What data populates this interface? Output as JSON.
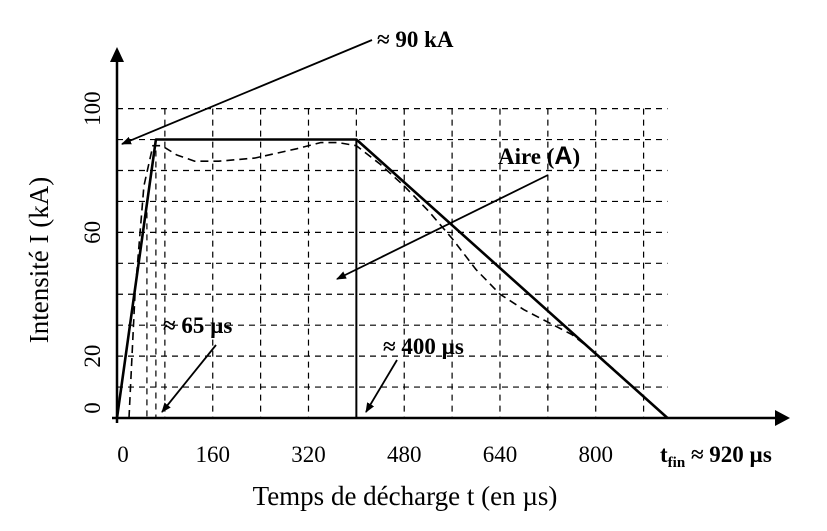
{
  "chart_data": {
    "type": "line",
    "xlabel": "Temps de décharge t (en µs)",
    "ylabel": "Intensité I (kA)",
    "xlim": [
      0,
      920
    ],
    "ylim": [
      0,
      100
    ],
    "x_ticks": [
      "0",
      "160",
      "320",
      "480",
      "640",
      "800"
    ],
    "x_tick_values": [
      0,
      160,
      320,
      480,
      640,
      800
    ],
    "y_ticks": [
      "0",
      "20",
      "60",
      "100"
    ],
    "y_tick_values": [
      0,
      20,
      60,
      100
    ],
    "grid": true,
    "series": [
      {
        "style": "solid",
        "x": [
          0,
          65,
          400,
          920
        ],
        "y": [
          0,
          90,
          90,
          0
        ]
      },
      {
        "style": "dashed",
        "x": [
          20,
          30,
          45,
          60,
          75,
          100,
          130,
          170,
          230,
          300,
          340,
          370,
          400,
          440,
          480,
          520,
          560,
          600,
          640,
          680,
          720,
          760,
          800,
          840,
          880,
          920
        ],
        "y": [
          0,
          40,
          75,
          88,
          88,
          85,
          83,
          83,
          84,
          87,
          89,
          89,
          88,
          82,
          75,
          67,
          58,
          48,
          40,
          35,
          31,
          27,
          21,
          14,
          7,
          0
        ]
      }
    ],
    "annotations": {
      "peak": "≈ 90 kA",
      "area_main": "Aire (",
      "area_letter": "A",
      "area_close": ")",
      "rise_time": "≈ 65 µs",
      "plateau_end": "≈ 400 µs",
      "t_end_t": "t",
      "t_end_sub": "fin",
      "t_end_rest": " ≈ 920 µs"
    }
  }
}
